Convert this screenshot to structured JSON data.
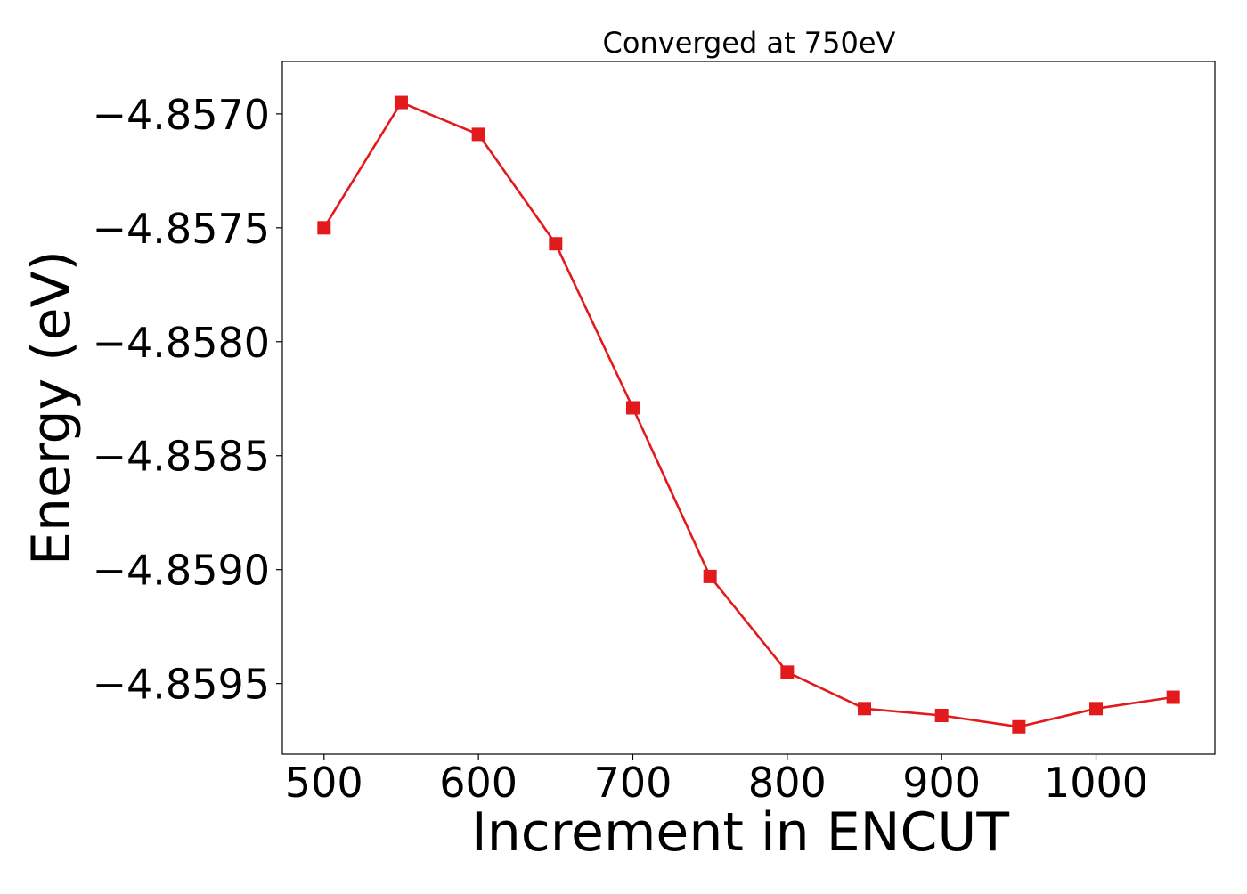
{
  "chart_data": {
    "type": "line",
    "title": "Converged at 750eV",
    "xlabel": "Increment in ENCUT",
    "ylabel": "Energy (eV)",
    "x": [
      500,
      550,
      600,
      650,
      700,
      750,
      800,
      850,
      900,
      950,
      1000,
      1050
    ],
    "series": [
      {
        "values": [
          -4.8575,
          -4.85695,
          -4.85709,
          -4.85757,
          -4.85829,
          -4.85903,
          -4.85945,
          -4.85961,
          -4.85964,
          -4.85969,
          -4.85961,
          -4.85956
        ],
        "color": "#e31a1c",
        "marker": "square"
      }
    ],
    "xlim": [
      473,
      1077
    ],
    "ylim": [
      -4.85981,
      -4.85677
    ],
    "xticks": [
      500,
      600,
      700,
      800,
      900,
      1000
    ],
    "xtick_labels": [
      "500",
      "600",
      "700",
      "800",
      "900",
      "1000"
    ],
    "yticks": [
      -4.857,
      -4.8575,
      -4.858,
      -4.8585,
      -4.859,
      -4.8595
    ],
    "ytick_labels": [
      "−4.8570",
      "−4.8575",
      "−4.8580",
      "−4.8585",
      "−4.8590",
      "−4.8595"
    ],
    "grid": false,
    "legend": false
  }
}
